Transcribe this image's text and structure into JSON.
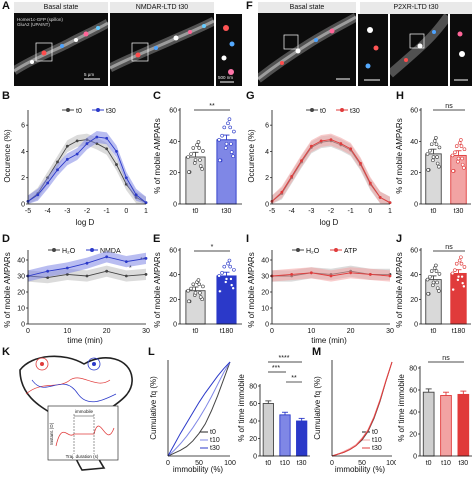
{
  "panels": {
    "A": "A",
    "B": "B",
    "C": "C",
    "D": "D",
    "E": "E",
    "F": "F",
    "G": "G",
    "H": "H",
    "I": "I",
    "J": "J",
    "K": "K",
    "L": "L",
    "M": "M"
  },
  "micrographs": {
    "A_left_title": "Basal state",
    "A_right_title": "NMDAR-LTD t30",
    "A_note_line1": "Homer1c-GFP (spillon)",
    "A_note_line2": "GluA2 (UPAINT)",
    "A_scale_left": "5 μm",
    "A_scale_right": "500 nm",
    "F_left_title": "Basal state",
    "F_right_title": "P2XR-LTD t30"
  },
  "colors": {
    "nmda": "#2b39c9",
    "nmda_fill": "#7f87e6",
    "atp": "#e03b3b",
    "atp_fill": "#f2a3a3",
    "control": "#444444",
    "control_fill": "#bdbdbd"
  },
  "panel_B": {
    "ylabel": "Occurence (%)",
    "xlabel": "log D",
    "legend": [
      "t0",
      "t30"
    ],
    "xticks": [
      "-5",
      "-4",
      "-3",
      "-2",
      "-1",
      "0",
      "1"
    ],
    "yticks": [
      "0",
      "2",
      "4",
      "6"
    ]
  },
  "panel_C": {
    "ylabel": "% of mobile AMPARs",
    "yticks": [
      "0",
      "20",
      "40",
      "60"
    ],
    "categories": [
      "t0",
      "t30"
    ],
    "sig": "**"
  },
  "panel_D": {
    "ylabel": "% of mobile AMPARs",
    "xlabel": "time (min)",
    "legend": [
      "H₂O",
      "NMDA"
    ],
    "xticks": [
      "0",
      "10",
      "20",
      "30"
    ],
    "yticks": [
      "0",
      "10",
      "20",
      "30",
      "40"
    ],
    "sig1": "*",
    "sig2": "**"
  },
  "panel_E": {
    "ylabel": "% of mobile AMPARs",
    "yticks": [
      "0",
      "20",
      "40",
      "60"
    ],
    "categories": [
      "t0",
      "t180"
    ],
    "sig": "*"
  },
  "panel_G": {
    "ylabel": "Occurence (%)",
    "xlabel": "log D",
    "legend": [
      "t0",
      "t30"
    ],
    "xticks": [
      "-5",
      "-4",
      "-3",
      "-2",
      "-1",
      "0",
      "1"
    ],
    "yticks": [
      "0",
      "2",
      "4",
      "6"
    ]
  },
  "panel_H": {
    "ylabel": "% of mobile AMPARs",
    "yticks": [
      "0",
      "20",
      "40",
      "60"
    ],
    "categories": [
      "t0",
      "t30"
    ],
    "sig": "ns"
  },
  "panel_I": {
    "ylabel": "% of mobile AMPARs",
    "xlabel": "time (min)",
    "legend": [
      "H₂O",
      "ATP"
    ],
    "xticks": [
      "0",
      "10",
      "20",
      "30"
    ],
    "yticks": [
      "0",
      "10",
      "20",
      "30",
      "40"
    ]
  },
  "panel_J": {
    "ylabel": "% of mobile AMPARs",
    "yticks": [
      "0",
      "20",
      "40",
      "60"
    ],
    "categories": [
      "t0",
      "t180"
    ],
    "sig": "ns"
  },
  "panel_K": {
    "inset_ylabel": "Instant. |D|",
    "inset_xlabel": "Traj. duration (s)",
    "inset_title": "immobile"
  },
  "panel_L_cdf": {
    "ylabel": "Cumulative fq (%)",
    "xlabel": "immobility (%)",
    "xticks": [
      "0",
      "50",
      "100"
    ],
    "legend": [
      "t0",
      "t10",
      "t30"
    ]
  },
  "panel_L_bar": {
    "ylabel": "% of time immobile",
    "yticks": [
      "0",
      "20",
      "40",
      "60",
      "80"
    ],
    "categories": [
      "t0",
      "t10",
      "t30"
    ],
    "sig1": "****",
    "sig2": "***",
    "sig3": "**"
  },
  "panel_M_cdf": {
    "ylabel": "Cumulative fq (%)",
    "xlabel": "immobility (%)",
    "xticks": [
      "0",
      "50",
      "100"
    ],
    "legend": [
      "t0",
      "t10",
      "t30"
    ]
  },
  "panel_M_bar": {
    "ylabel": "% of time immobile",
    "yticks": [
      "0",
      "20",
      "40",
      "60",
      "80"
    ],
    "categories": [
      "t0",
      "t10",
      "t30"
    ],
    "sig": "ns"
  },
  "chart_data": [
    {
      "panel": "B",
      "type": "line",
      "x": [
        -5,
        -4.5,
        -4,
        -3.5,
        -3,
        -2.5,
        -2,
        -1.5,
        -1,
        -0.5,
        0,
        0.5,
        1
      ],
      "series": [
        {
          "name": "t0",
          "values": [
            0.2,
            0.8,
            2.0,
            3.2,
            4.4,
            4.8,
            4.9,
            4.6,
            4.2,
            3.0,
            1.5,
            0.5,
            0.1
          ]
        },
        {
          "name": "t30",
          "values": [
            0.2,
            0.7,
            1.6,
            2.6,
            3.4,
            3.8,
            4.6,
            5.1,
            5.0,
            4.0,
            2.0,
            0.7,
            0.1
          ]
        }
      ],
      "ylim": [
        0,
        7
      ],
      "xlim": [
        -5,
        1
      ]
    },
    {
      "panel": "C",
      "type": "bar",
      "categories": [
        "t0",
        "t30"
      ],
      "values": [
        30,
        41
      ],
      "ylim": [
        0,
        60
      ]
    },
    {
      "panel": "D",
      "type": "line",
      "x": [
        0,
        5,
        10,
        15,
        20,
        25,
        30
      ],
      "series": [
        {
          "name": "H₂O",
          "values": [
            30,
            29,
            31,
            30,
            33,
            30,
            31
          ]
        },
        {
          "name": "NMDA",
          "values": [
            30,
            33,
            35,
            38,
            42,
            39,
            41
          ]
        }
      ],
      "ylim": [
        0,
        45
      ],
      "xlim": [
        0,
        30
      ]
    },
    {
      "panel": "E",
      "type": "bar",
      "categories": [
        "t0",
        "t180"
      ],
      "values": [
        27,
        39
      ],
      "ylim": [
        0,
        60
      ]
    },
    {
      "panel": "G",
      "type": "line",
      "x": [
        -5,
        -4.5,
        -4,
        -3.5,
        -3,
        -2.5,
        -2,
        -1.5,
        -1,
        -0.5,
        0,
        0.5,
        1
      ],
      "series": [
        {
          "name": "t0",
          "values": [
            0.2,
            0.8,
            2.0,
            3.2,
            4.3,
            4.7,
            4.8,
            4.5,
            4.1,
            3.0,
            1.5,
            0.5,
            0.1
          ]
        },
        {
          "name": "t30",
          "values": [
            0.2,
            0.9,
            2.1,
            3.3,
            4.4,
            4.8,
            4.9,
            4.6,
            4.2,
            3.1,
            1.6,
            0.5,
            0.1
          ]
        }
      ],
      "ylim": [
        0,
        7
      ],
      "xlim": [
        -5,
        1
      ]
    },
    {
      "panel": "H",
      "type": "bar",
      "categories": [
        "t0",
        "t30"
      ],
      "values": [
        32,
        31
      ],
      "ylim": [
        0,
        60
      ]
    },
    {
      "panel": "I",
      "type": "line",
      "x": [
        0,
        5,
        10,
        15,
        20,
        25,
        30
      ],
      "series": [
        {
          "name": "H₂O",
          "values": [
            30,
            30,
            32,
            31,
            33,
            31,
            31
          ]
        },
        {
          "name": "ATP",
          "values": [
            30,
            31,
            32,
            30,
            32,
            31,
            30
          ]
        }
      ],
      "ylim": [
        0,
        45
      ],
      "xlim": [
        0,
        30
      ]
    },
    {
      "panel": "J",
      "type": "bar",
      "categories": [
        "t0",
        "t180"
      ],
      "values": [
        36,
        41
      ],
      "ylim": [
        0,
        60
      ]
    },
    {
      "panel": "L",
      "type": "line",
      "x": [
        0,
        10,
        20,
        30,
        40,
        50,
        60,
        70,
        80,
        90,
        100
      ],
      "series": [
        {
          "name": "t0",
          "values": [
            0,
            3,
            6,
            10,
            16,
            24,
            34,
            48,
            64,
            82,
            100
          ]
        },
        {
          "name": "t10",
          "values": [
            0,
            6,
            13,
            21,
            30,
            40,
            51,
            63,
            76,
            89,
            100
          ]
        },
        {
          "name": "t30",
          "values": [
            0,
            12,
            24,
            35,
            46,
            57,
            67,
            76,
            85,
            93,
            100
          ]
        }
      ],
      "ylim": [
        0,
        100
      ],
      "xlim": [
        0,
        100
      ]
    },
    {
      "panel": "L-bar",
      "type": "bar",
      "categories": [
        "t0",
        "t10",
        "t30"
      ],
      "values": [
        60,
        47,
        40
      ],
      "ylim": [
        0,
        80
      ]
    },
    {
      "panel": "M",
      "type": "line",
      "x": [
        0,
        10,
        20,
        30,
        40,
        50,
        60,
        70,
        80,
        90,
        100
      ],
      "series": [
        {
          "name": "t0",
          "values": [
            0,
            2,
            4,
            7,
            11,
            17,
            26,
            40,
            58,
            80,
            100
          ]
        },
        {
          "name": "t10",
          "values": [
            0,
            2,
            5,
            8,
            12,
            19,
            28,
            42,
            60,
            81,
            100
          ]
        },
        {
          "name": "t30",
          "values": [
            0,
            2,
            4,
            7,
            11,
            18,
            27,
            41,
            59,
            80,
            100
          ]
        }
      ],
      "ylim": [
        0,
        100
      ],
      "xlim": [
        0,
        100
      ]
    },
    {
      "panel": "M-bar",
      "type": "bar",
      "categories": [
        "t0",
        "t10",
        "t30"
      ],
      "values": [
        58,
        55,
        56
      ],
      "ylim": [
        0,
        80
      ]
    }
  ]
}
